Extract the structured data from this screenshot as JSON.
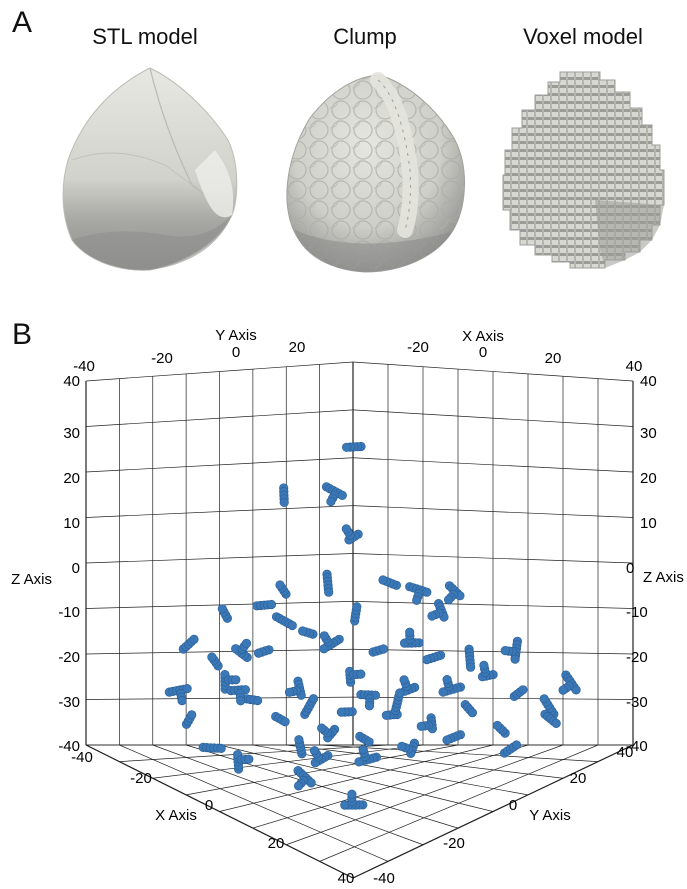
{
  "panel_a": {
    "letter": "A",
    "titles": [
      "STL model",
      "Clump",
      "Voxel model"
    ]
  },
  "panel_b": {
    "letter": "B",
    "axes": {
      "x_label": "X Axis",
      "y_label": "Y Axis",
      "z_label": "Z Axis",
      "range": [
        -40,
        40
      ],
      "tick_step": 10
    },
    "top_ticks_y": [
      "-40",
      "-20",
      "0",
      "20"
    ],
    "top_ticks_x": [
      "-20",
      "0",
      "20",
      "40"
    ],
    "z_ticks": [
      "40",
      "30",
      "20",
      "10",
      "0",
      "-10",
      "-20",
      "-30",
      "-40"
    ],
    "bottom_ticks_x": [
      "-40",
      "-20",
      "0",
      "20",
      "40"
    ],
    "bottom_ticks_y": [
      "-40",
      "-20",
      "0",
      "20",
      "40"
    ],
    "particle_color": "#3b78b8"
  }
}
